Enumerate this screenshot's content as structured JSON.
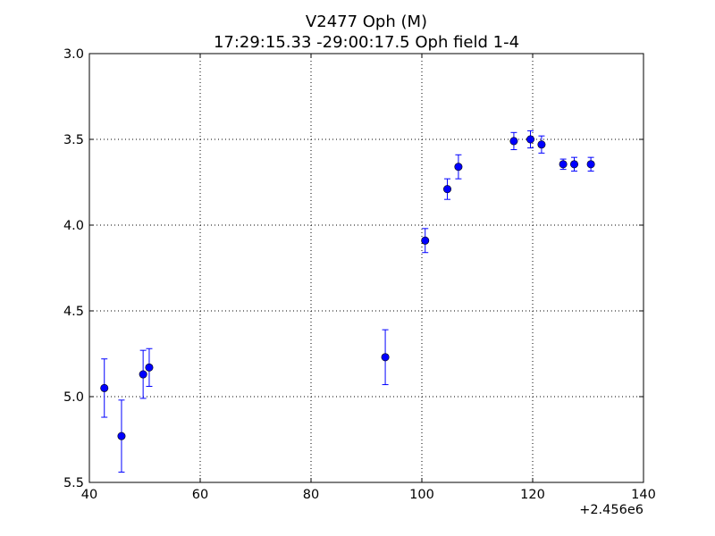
{
  "chart_data": {
    "type": "scatter",
    "title": "V2477 Oph  (M)",
    "subtitle": "17:29:15.33 -29:00:17.5 Oph field 1-4",
    "xlabel": "",
    "ylabel": "",
    "x_offset_label": "+2.456e6",
    "xlim": [
      40,
      140
    ],
    "ylim": [
      5.5,
      3.0
    ],
    "y_inverted": true,
    "grid": true,
    "x_ticks": [
      40,
      60,
      80,
      100,
      120,
      140
    ],
    "x_tick_labels": [
      "40",
      "60",
      "80",
      "100",
      "120",
      "140"
    ],
    "y_ticks": [
      3.0,
      3.5,
      4.0,
      4.5,
      5.0,
      5.5
    ],
    "y_tick_labels": [
      "3.0",
      "3.5",
      "4.0",
      "4.5",
      "5.0",
      "5.5"
    ],
    "marker_color": "#0000ff",
    "error_bar_color": "#0000ff",
    "series": [
      {
        "points": [
          {
            "x": 42.7,
            "y": 4.95,
            "err": 0.17
          },
          {
            "x": 45.8,
            "y": 5.23,
            "err": 0.21
          },
          {
            "x": 49.7,
            "y": 4.87,
            "err": 0.14
          },
          {
            "x": 50.8,
            "y": 4.83,
            "err": 0.11
          },
          {
            "x": 93.4,
            "y": 4.77,
            "err": 0.16
          },
          {
            "x": 100.6,
            "y": 4.09,
            "err": 0.07
          },
          {
            "x": 104.6,
            "y": 3.79,
            "err": 0.06
          },
          {
            "x": 106.6,
            "y": 3.66,
            "err": 0.07
          },
          {
            "x": 116.6,
            "y": 3.51,
            "err": 0.05
          },
          {
            "x": 119.6,
            "y": 3.5,
            "err": 0.05
          },
          {
            "x": 121.6,
            "y": 3.53,
            "err": 0.05
          },
          {
            "x": 125.5,
            "y": 3.645,
            "err": 0.03
          },
          {
            "x": 127.5,
            "y": 3.645,
            "err": 0.04
          },
          {
            "x": 130.5,
            "y": 3.645,
            "err": 0.04
          }
        ]
      }
    ]
  }
}
